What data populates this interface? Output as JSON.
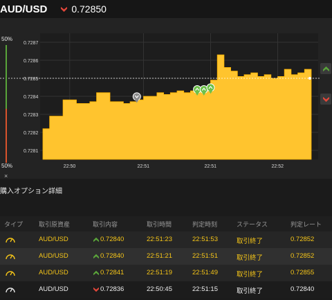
{
  "header": {
    "pair": "AUD/USD",
    "rate": "0.72850",
    "rate_direction": "down"
  },
  "gauge": {
    "top_pct": "50%",
    "bottom_pct": "50%",
    "close_label": "×",
    "up_color": "#5aa53a",
    "down_color": "#d9532c"
  },
  "chart_data": {
    "type": "area",
    "y_ticks": [
      "0.7287",
      "0.7286",
      "0.7285",
      "0.7284",
      "0.7283",
      "0.7282",
      "0.7281"
    ],
    "x_ticks": [
      "22:50",
      "22:51",
      "22:51",
      "22:52"
    ],
    "ylim": [
      0.72805,
      0.72875
    ],
    "current_rate": 0.7285,
    "fill_color": "#ffc42e",
    "series": [
      {
        "x": [
          0,
          1,
          2,
          3,
          4,
          5,
          6,
          7,
          8,
          9,
          10,
          11,
          12,
          13,
          14,
          15,
          16,
          17,
          18,
          19,
          20,
          21,
          22,
          23,
          24,
          25,
          26,
          27,
          28,
          29,
          30,
          31,
          32,
          33,
          34,
          35,
          36,
          37,
          38,
          39,
          40
        ],
        "values": [
          0.72822,
          0.72829,
          0.72829,
          0.72838,
          0.72838,
          0.72836,
          0.72836,
          0.72837,
          0.72842,
          0.72842,
          0.72837,
          0.72837,
          0.72836,
          0.72837,
          0.72838,
          0.7284,
          0.7284,
          0.72842,
          0.72841,
          0.72842,
          0.72843,
          0.72842,
          0.72843,
          0.72844,
          0.72845,
          0.72849,
          0.72863,
          0.72856,
          0.72854,
          0.72851,
          0.72852,
          0.72853,
          0.72851,
          0.72852,
          0.7285,
          0.72851,
          0.72855,
          0.72852,
          0.72853,
          0.72855,
          0.7285
        ]
      }
    ],
    "markers": [
      {
        "x": 14,
        "y": 0.72836,
        "kind": "gray"
      },
      {
        "x": 23,
        "y": 0.7284,
        "kind": "green"
      },
      {
        "x": 24,
        "y": 0.7284,
        "kind": "green"
      },
      {
        "x": 25,
        "y": 0.72841,
        "kind": "green"
      }
    ],
    "grid": true
  },
  "section": {
    "title": "購入オプション詳細"
  },
  "table": {
    "headers": [
      "タイプ",
      "取引原資産",
      "取引内容",
      "取引時間",
      "判定時刻",
      "ステータス",
      "判定レート"
    ],
    "rows": [
      {
        "asset": "AUD/USD",
        "direction": "up",
        "rate": "0.72840",
        "trade_time": "22:51:23",
        "judge_time": "22:51:53",
        "status": "取引終了",
        "judge_rate": "0.72852",
        "style": "gold"
      },
      {
        "asset": "AUD/USD",
        "direction": "up",
        "rate": "0.72840",
        "trade_time": "22:51:21",
        "judge_time": "22:51:51",
        "status": "取引終了",
        "judge_rate": "0.72852",
        "style": "gold"
      },
      {
        "asset": "AUD/USD",
        "direction": "up",
        "rate": "0.72841",
        "trade_time": "22:51:19",
        "judge_time": "22:51:49",
        "status": "取引終了",
        "judge_rate": "0.72855",
        "style": "gold"
      },
      {
        "asset": "AUD/USD",
        "direction": "down",
        "rate": "0.72836",
        "trade_time": "22:50:45",
        "judge_time": "22:51:15",
        "status": "取引終了",
        "judge_rate": "0.72840",
        "style": "white"
      }
    ]
  }
}
